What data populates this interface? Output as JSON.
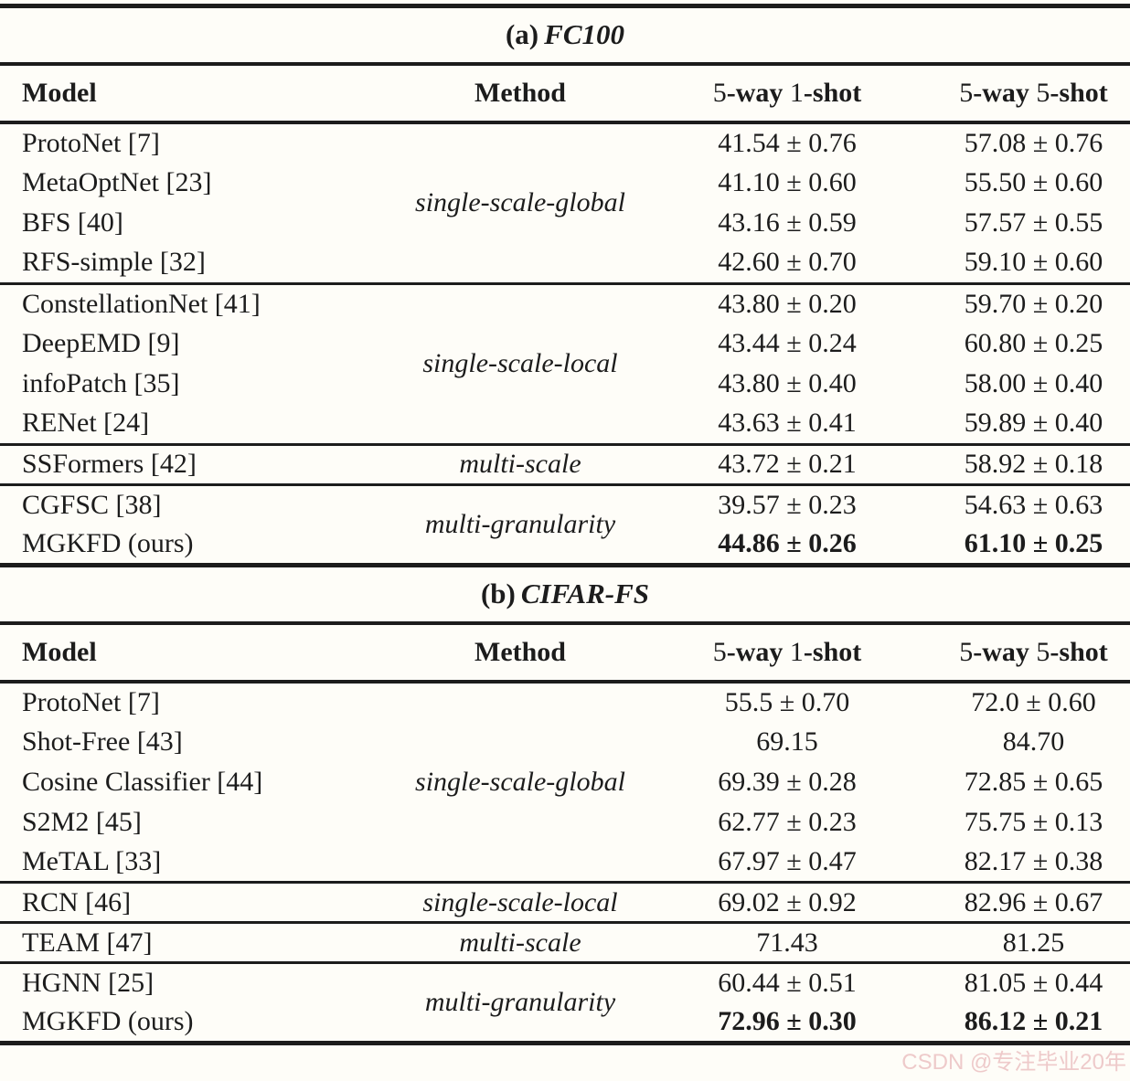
{
  "background": "#fefdf8",
  "ink_color": "#1c1c1c",
  "watermark": {
    "text": "CSDN @专注毕业20年",
    "color": "#eecaca"
  },
  "panels": [
    {
      "id": "fc100",
      "title_prefix": "(a)",
      "title_dataset": "FC100",
      "columns": [
        "Model",
        "Method",
        "5-way 1-shot",
        "5-way 5-shot"
      ],
      "groups": [
        {
          "method": "single-scale-global",
          "rows": [
            {
              "model": "ProtoNet [7]",
              "shot1": "41.54 ± 0.76",
              "shot5": "57.08 ± 0.76",
              "best": false
            },
            {
              "model": "MetaOptNet [23]",
              "shot1": "41.10 ± 0.60",
              "shot5": "55.50 ± 0.60",
              "best": false
            },
            {
              "model": "BFS [40]",
              "shot1": "43.16 ± 0.59",
              "shot5": "57.57 ± 0.55",
              "best": false
            },
            {
              "model": "RFS-simple [32]",
              "shot1": "42.60 ± 0.70",
              "shot5": "59.10 ± 0.60",
              "best": false
            }
          ]
        },
        {
          "method": "single-scale-local",
          "rows": [
            {
              "model": "ConstellationNet [41]",
              "shot1": "43.80 ± 0.20",
              "shot5": "59.70 ± 0.20",
              "best": false
            },
            {
              "model": "DeepEMD [9]",
              "shot1": "43.44 ± 0.24",
              "shot5": "60.80 ± 0.25",
              "best": false
            },
            {
              "model": "infoPatch [35]",
              "shot1": "43.80 ± 0.40",
              "shot5": "58.00 ± 0.40",
              "best": false
            },
            {
              "model": "RENet [24]",
              "shot1": "43.63 ± 0.41",
              "shot5": "59.89 ± 0.40",
              "best": false
            }
          ]
        },
        {
          "method": "multi-scale",
          "rows": [
            {
              "model": "SSFormers [42]",
              "shot1": "43.72 ± 0.21",
              "shot5": "58.92 ± 0.18",
              "best": false
            }
          ]
        },
        {
          "method": "multi-granularity",
          "rows": [
            {
              "model": "CGFSC [38]",
              "shot1": "39.57 ± 0.23",
              "shot5": "54.63 ± 0.63",
              "best": false
            },
            {
              "model": "MGKFD (ours)",
              "shot1": "44.86 ± 0.26",
              "shot5": "61.10 ± 0.25",
              "best": true
            }
          ]
        }
      ]
    },
    {
      "id": "cifar-fs",
      "title_prefix": "(b)",
      "title_dataset": "CIFAR-FS",
      "columns": [
        "Model",
        "Method",
        "5-way 1-shot",
        "5-way 5-shot"
      ],
      "groups": [
        {
          "method": "single-scale-global",
          "rows": [
            {
              "model": "ProtoNet [7]",
              "shot1": "55.5 ± 0.70",
              "shot5": "72.0 ± 0.60",
              "best": false
            },
            {
              "model": "Shot-Free [43]",
              "shot1": "69.15",
              "shot5": "84.70",
              "best": false
            },
            {
              "model": "Cosine Classifier [44]",
              "shot1": "69.39 ± 0.28",
              "shot5": "72.85 ± 0.65",
              "best": false
            },
            {
              "model": "S2M2 [45]",
              "shot1": "62.77 ± 0.23",
              "shot5": "75.75 ± 0.13",
              "best": false
            },
            {
              "model": "MeTAL [33]",
              "shot1": "67.97 ± 0.47",
              "shot5": "82.17 ± 0.38",
              "best": false
            }
          ]
        },
        {
          "method": "single-scale-local",
          "rows": [
            {
              "model": "RCN [46]",
              "shot1": "69.02 ± 0.92",
              "shot5": "82.96 ± 0.67",
              "best": false
            }
          ]
        },
        {
          "method": "multi-scale",
          "rows": [
            {
              "model": "TEAM [47]",
              "shot1": "71.43",
              "shot5": "81.25",
              "best": false
            }
          ]
        },
        {
          "method": "multi-granularity",
          "rows": [
            {
              "model": "HGNN [25]",
              "shot1": "60.44 ± 0.51",
              "shot5": "81.05 ± 0.44",
              "best": false
            },
            {
              "model": "MGKFD (ours)",
              "shot1": "72.96 ± 0.30",
              "shot5": "86.12 ± 0.21",
              "best": true
            }
          ]
        }
      ]
    }
  ]
}
